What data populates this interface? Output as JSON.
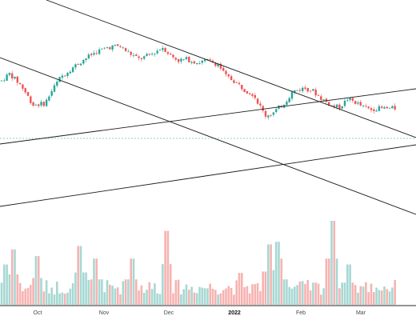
{
  "chart_data": {
    "type": "candlestick",
    "title": "",
    "xlabel": "",
    "ylabel": "",
    "grid": false,
    "legend": "none",
    "price_axis_labels": "none",
    "colors": {
      "up": "#26a69a",
      "down": "#ef5350",
      "volume_up": "#a7d8d3",
      "volume_down": "#f6b3b1",
      "trendline": "#1a1a1a",
      "last_price_line": "#26a69a",
      "axis_line": "#2a2a2a"
    },
    "x_tick_labels": [
      {
        "label": "Oct",
        "bold": false
      },
      {
        "label": "Nov",
        "bold": false
      },
      {
        "label": "Dec",
        "bold": false
      },
      {
        "label": "2022",
        "bold": true
      },
      {
        "label": "Feb",
        "bold": false
      },
      {
        "label": "Mar",
        "bold": false
      }
    ],
    "price_range": [
      0,
      100
    ],
    "price_path": [
      [
        0,
        66
      ],
      [
        2,
        72
      ],
      [
        5,
        62
      ],
      [
        8,
        46
      ],
      [
        11,
        47
      ],
      [
        13,
        59
      ],
      [
        15,
        69
      ],
      [
        18,
        77
      ],
      [
        21,
        84
      ],
      [
        24,
        90
      ],
      [
        27,
        94
      ],
      [
        30,
        95
      ],
      [
        32,
        90
      ],
      [
        35,
        84
      ],
      [
        38,
        88
      ],
      [
        41,
        94
      ],
      [
        43,
        87
      ],
      [
        45,
        83
      ],
      [
        47,
        84
      ],
      [
        50,
        81
      ],
      [
        52,
        83
      ],
      [
        55,
        80
      ],
      [
        57,
        70
      ],
      [
        59,
        66
      ],
      [
        62,
        58
      ],
      [
        64,
        55
      ],
      [
        67,
        37
      ],
      [
        69,
        39
      ],
      [
        72,
        48
      ],
      [
        74,
        57
      ],
      [
        77,
        60
      ],
      [
        79,
        58
      ],
      [
        81,
        52
      ],
      [
        84,
        45
      ],
      [
        86,
        44
      ],
      [
        88,
        51
      ],
      [
        90,
        48
      ],
      [
        92,
        44
      ],
      [
        94,
        42
      ],
      [
        95,
        43
      ]
    ],
    "volume_range": [
      0,
      100
    ],
    "volume_spikes": [
      [
        1,
        48
      ],
      [
        3,
        66
      ],
      [
        9,
        58
      ],
      [
        20,
        70
      ],
      [
        24,
        55
      ],
      [
        33,
        55
      ],
      [
        42,
        88
      ],
      [
        61,
        38
      ],
      [
        68,
        72
      ],
      [
        70,
        75
      ],
      [
        71,
        55
      ],
      [
        84,
        100
      ],
      [
        88,
        48
      ]
    ],
    "candle_count": 150
  }
}
